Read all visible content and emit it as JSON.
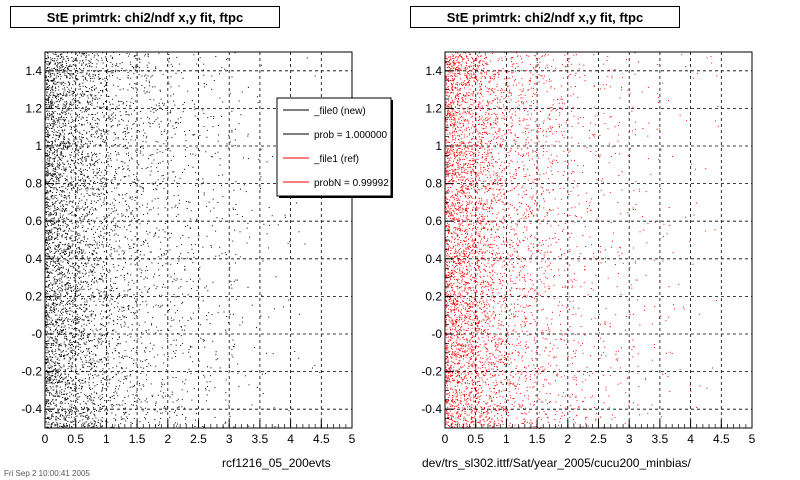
{
  "footer": {
    "date_text": "Fri Sep 2 10:00:41 2005"
  },
  "colors": {
    "file0": "#000000",
    "file1": "#ff0000",
    "grid": "#000000"
  },
  "chart_data": [
    {
      "type": "scatter",
      "title": "StE primtrk: chi2/ndf x,y fit, ftpc",
      "xlabel": "rcf1216_05_200evts",
      "ylabel": "",
      "xlim": [
        0,
        5
      ],
      "ylim": [
        -0.5,
        1.5
      ],
      "grid": true,
      "xticks": [
        "0",
        "0.5",
        "1",
        "1.5",
        "2",
        "2.5",
        "3",
        "3.5",
        "4",
        "4.5",
        "5"
      ],
      "yticks": [
        "-0.4",
        "-0.2",
        "-0",
        "0.2",
        "0.4",
        "0.6",
        "0.8",
        "1",
        "1.2",
        "1.4"
      ],
      "series": [
        {
          "name": "_file0 (new)",
          "color": "#000000",
          "density": "high near x=0, decaying toward x=5"
        }
      ],
      "legend": {
        "placement": "top-right",
        "entries": [
          {
            "label": "_file0 (new)",
            "color": "#000000"
          },
          {
            "label": "prob = 1.000000",
            "color": "#000000"
          },
          {
            "label": "_file1 (ref)",
            "color": "#ff0000"
          },
          {
            "label": "probN = 0.99992",
            "color": "#ff0000"
          }
        ]
      }
    },
    {
      "type": "scatter",
      "title": "StE primtrk: chi2/ndf x,y fit, ftpc",
      "xlabel": "dev/trs_sl302.ittf/Sat/year_2005/cucu200_minbias/",
      "ylabel": "",
      "xlim": [
        0,
        5
      ],
      "ylim": [
        -0.5,
        1.5
      ],
      "grid": true,
      "xticks": [
        "0",
        "0.5",
        "1",
        "1.5",
        "2",
        "2.5",
        "3",
        "3.5",
        "4",
        "4.5",
        "5"
      ],
      "yticks": [
        "-0.4",
        "-0.2",
        "-0",
        "0.2",
        "0.4",
        "0.6",
        "0.8",
        "1",
        "1.2",
        "1.4"
      ],
      "series": [
        {
          "name": "_file1 (ref)",
          "color": "#ff0000",
          "density": "high near x=0, decaying toward x=5"
        }
      ]
    }
  ]
}
